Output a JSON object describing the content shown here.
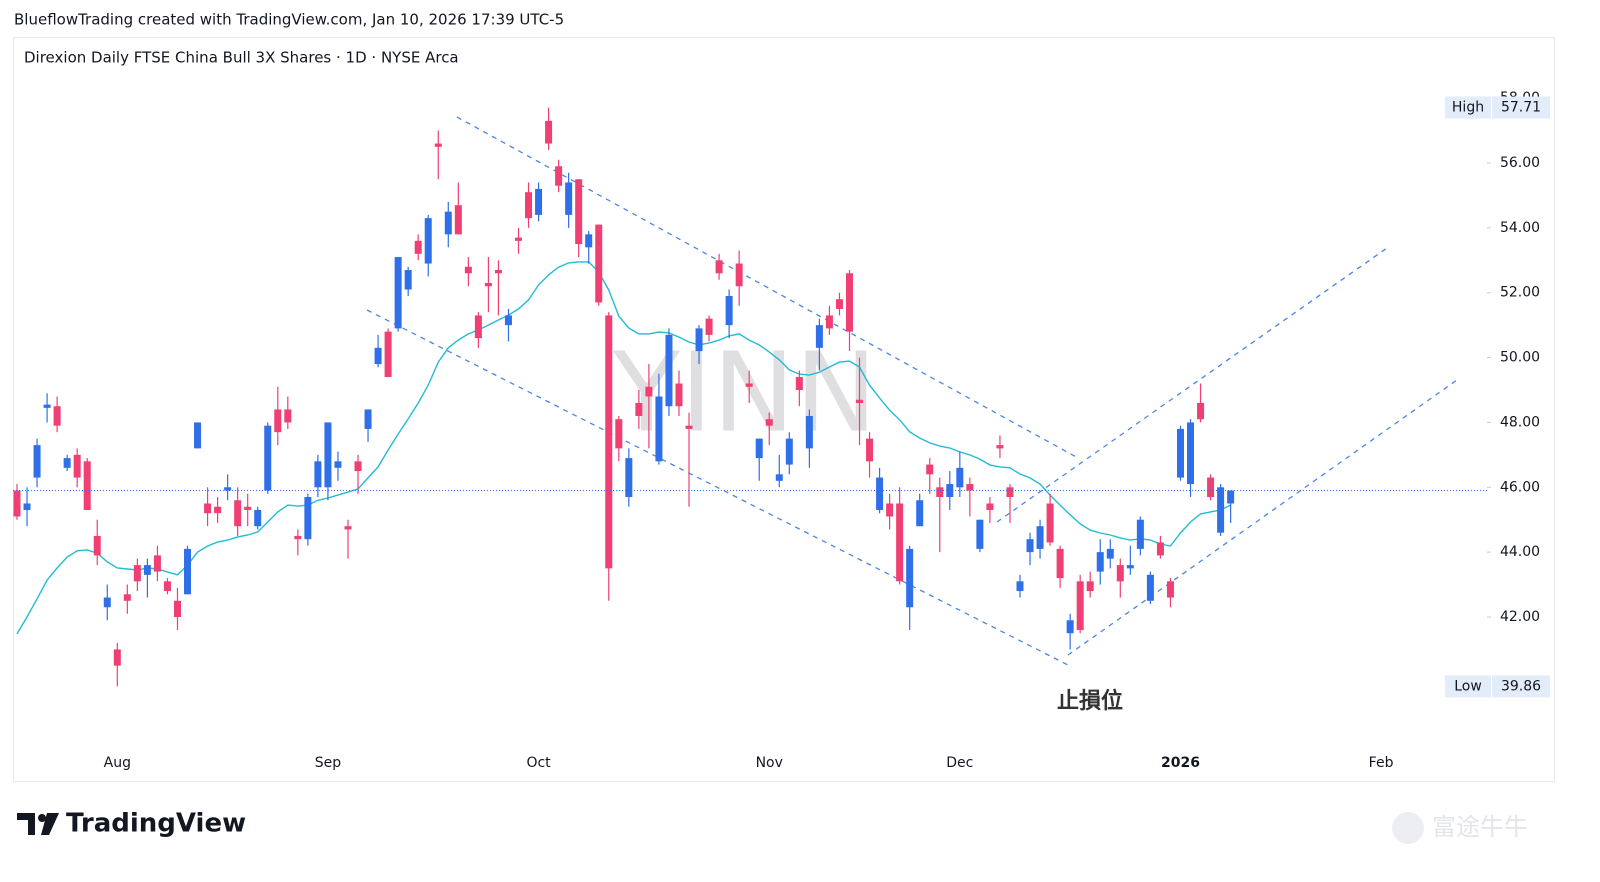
{
  "header": "BlueflowTrading created with TradingView.com, Jan 10, 2026 17:39 UTC-5",
  "footer": {
    "brand": "TradingView",
    "watermark": "富途牛牛"
  },
  "chart_data": {
    "type": "candlestick",
    "title": "Direxion Daily FTSE China Bull 3X Shares · 1D · NYSE Arca",
    "symbol_watermark": "YINN",
    "annotation": "止損位",
    "up_color": "#2f6fe8",
    "down_color": "#ef3f73",
    "categories": [
      null,
      null,
      null,
      null,
      null,
      null,
      null,
      null,
      null,
      null,
      "Aug",
      null,
      null,
      null,
      null,
      null,
      null,
      null,
      null,
      null,
      null,
      null,
      null,
      null,
      null,
      null,
      null,
      null,
      null,
      null,
      null,
      "Sep",
      null,
      null,
      null,
      null,
      null,
      null,
      null,
      null,
      null,
      null,
      null,
      null,
      null,
      null,
      null,
      null,
      null,
      null,
      null,
      null,
      "Oct",
      null,
      null,
      null,
      null,
      null,
      null,
      null,
      null,
      null,
      null,
      null,
      null,
      null,
      null,
      null,
      null,
      null,
      null,
      null,
      null,
      null,
      null,
      "Nov",
      null,
      null,
      null,
      null,
      null,
      null,
      null,
      null,
      null,
      null,
      null,
      null,
      null,
      null,
      null,
      null,
      null,
      null,
      "Dec",
      null,
      null,
      null,
      null,
      null,
      null,
      null,
      null,
      null,
      null,
      null,
      null,
      null,
      null,
      null,
      null,
      null,
      null,
      null,
      null,
      null,
      "2026",
      null,
      null,
      null,
      null,
      null,
      null,
      null,
      null,
      null,
      null,
      null,
      null,
      null,
      null,
      null,
      null,
      null,
      null,
      null,
      "Feb",
      null,
      null,
      null,
      null,
      null,
      null,
      null,
      null,
      null,
      null
    ],
    "open": [
      45.9,
      45.3,
      46.3,
      48.45,
      48.5,
      46.6,
      47.0,
      46.8,
      44.5,
      42.3,
      41.0,
      42.7,
      43.6,
      43.3,
      43.9,
      43.1,
      42.5,
      42.7,
      47.2,
      45.5,
      45.4,
      45.9,
      45.6,
      45.4,
      44.8,
      45.9,
      48.4,
      48.4,
      44.5,
      44.4,
      46.0,
      46.0,
      46.6,
      44.8,
      46.8,
      47.8,
      49.8,
      50.8,
      50.9,
      52.1,
      53.6,
      52.9,
      56.6,
      53.8,
      54.7,
      52.8,
      51.3,
      52.3,
      52.7,
      51.0,
      53.7,
      55.1,
      54.4,
      57.3,
      55.9,
      54.4,
      55.5,
      53.4,
      54.1,
      51.3,
      48.1,
      45.7,
      48.6,
      49.1,
      46.8,
      48.5,
      49.2,
      47.9,
      50.2,
      51.2,
      53.0,
      51.0,
      52.9,
      49.2,
      46.9,
      48.1,
      46.2,
      46.7,
      49.4,
      47.2,
      50.3,
      51.3,
      51.8,
      52.6,
      48.7,
      47.5,
      45.3,
      45.5,
      45.5,
      42.3,
      44.8,
      46.7,
      46.0,
      45.7,
      46.0,
      46.1,
      44.1,
      45.5,
      47.3,
      46.0,
      42.8,
      44.0,
      44.1,
      45.5,
      44.1,
      41.5,
      43.1,
      43.1,
      43.4,
      43.8,
      43.6,
      43.5,
      44.1,
      42.5,
      44.3,
      43.1,
      46.3,
      46.1,
      48.6,
      46.3,
      44.6,
      45.5,
      null,
      null,
      null,
      null,
      null,
      null,
      null,
      null,
      null,
      null,
      null,
      null,
      null,
      null,
      null,
      null,
      null,
      null,
      null,
      null,
      null,
      null,
      null,
      null,
      null
    ],
    "high": [
      46.1,
      46.0,
      47.5,
      48.9,
      48.8,
      47.0,
      47.2,
      46.9,
      45.0,
      43.0,
      41.2,
      43.0,
      43.8,
      43.8,
      44.2,
      43.2,
      42.9,
      44.2,
      48.0,
      46.0,
      45.7,
      46.4,
      46.0,
      45.8,
      45.4,
      48.0,
      49.1,
      48.8,
      44.7,
      45.8,
      47.0,
      48.0,
      47.1,
      45.0,
      47.0,
      48.4,
      50.7,
      50.9,
      53.1,
      52.8,
      53.8,
      54.4,
      57.0,
      54.8,
      55.4,
      53.1,
      51.4,
      53.1,
      53.0,
      51.5,
      54.0,
      55.4,
      55.4,
      57.71,
      56.1,
      55.7,
      55.5,
      53.9,
      54.1,
      51.4,
      48.2,
      47.2,
      49.0,
      49.8,
      49.5,
      50.9,
      49.6,
      48.3,
      51.0,
      51.3,
      53.2,
      52.1,
      53.3,
      49.6,
      47.5,
      48.3,
      47.0,
      47.7,
      49.6,
      48.4,
      51.2,
      51.6,
      52.0,
      52.7,
      50.0,
      47.7,
      46.6,
      45.8,
      46.0,
      44.2,
      45.8,
      46.9,
      46.3,
      46.5,
      47.1,
      46.3,
      45.0,
      45.7,
      47.6,
      46.1,
      43.3,
      44.6,
      45.0,
      45.8,
      44.2,
      42.1,
      43.3,
      43.4,
      44.4,
      44.4,
      43.8,
      44.2,
      45.1,
      43.4,
      44.5,
      43.2,
      47.9,
      48.1,
      49.2,
      46.4,
      46.1,
      45.9,
      null,
      null,
      null,
      null,
      null,
      null,
      null,
      null,
      null,
      null,
      null,
      null,
      null,
      null,
      null,
      null,
      null,
      null,
      null,
      null,
      null,
      null,
      null,
      null,
      null
    ],
    "low": [
      45.0,
      44.8,
      46.0,
      48.0,
      47.7,
      46.5,
      46.0,
      45.3,
      43.6,
      41.9,
      39.86,
      42.1,
      42.8,
      42.6,
      43.1,
      42.7,
      41.6,
      42.7,
      47.2,
      44.8,
      44.9,
      45.6,
      44.5,
      44.8,
      44.7,
      45.8,
      47.3,
      47.8,
      43.9,
      44.2,
      45.7,
      45.6,
      46.2,
      43.8,
      45.8,
      47.4,
      49.7,
      49.4,
      50.8,
      51.9,
      53.0,
      52.5,
      55.5,
      53.4,
      53.8,
      52.2,
      50.3,
      51.4,
      51.3,
      50.5,
      53.2,
      54.0,
      54.2,
      56.4,
      55.1,
      54.0,
      53.1,
      52.9,
      51.6,
      42.5,
      46.8,
      45.4,
      47.8,
      47.2,
      46.7,
      48.2,
      48.2,
      45.4,
      49.8,
      50.5,
      52.4,
      50.6,
      51.6,
      48.6,
      46.2,
      47.3,
      46.0,
      46.4,
      48.5,
      46.6,
      49.6,
      50.7,
      51.3,
      50.2,
      47.3,
      46.3,
      45.2,
      44.7,
      43.0,
      41.6,
      44.8,
      45.8,
      44.0,
      45.3,
      45.7,
      45.1,
      44.0,
      44.9,
      46.9,
      44.9,
      42.6,
      43.6,
      43.8,
      44.2,
      42.9,
      41.0,
      41.5,
      42.6,
      43.0,
      43.5,
      42.6,
      43.3,
      43.9,
      42.4,
      43.8,
      42.3,
      46.2,
      45.7,
      48.0,
      45.6,
      44.5,
      44.9,
      null,
      null,
      null,
      null,
      null,
      null,
      null,
      null,
      null,
      null,
      null,
      null,
      null,
      null,
      null,
      null,
      null,
      null,
      null,
      null,
      null,
      null,
      null,
      null,
      null
    ],
    "close": [
      45.1,
      45.5,
      47.3,
      48.55,
      47.9,
      46.9,
      46.3,
      45.3,
      43.9,
      42.6,
      40.5,
      42.5,
      43.1,
      43.6,
      43.4,
      42.8,
      42.0,
      44.1,
      48.0,
      45.2,
      45.2,
      46.0,
      44.8,
      45.3,
      45.3,
      47.9,
      47.7,
      48.0,
      44.4,
      45.7,
      46.8,
      48.0,
      46.8,
      44.7,
      46.5,
      48.4,
      50.3,
      49.4,
      53.1,
      52.7,
      53.2,
      54.3,
      56.5,
      54.5,
      53.8,
      52.6,
      50.6,
      52.2,
      52.6,
      51.3,
      53.6,
      54.3,
      55.2,
      56.6,
      55.3,
      55.4,
      53.5,
      53.8,
      51.7,
      43.5,
      47.2,
      46.9,
      48.2,
      48.8,
      48.8,
      50.7,
      48.5,
      47.8,
      50.9,
      50.7,
      52.6,
      51.9,
      52.2,
      49.1,
      47.5,
      47.9,
      46.4,
      47.5,
      49.0,
      48.2,
      51.0,
      50.9,
      51.5,
      50.8,
      48.6,
      46.8,
      46.3,
      45.1,
      43.1,
      44.1,
      45.6,
      46.4,
      45.7,
      46.1,
      46.6,
      45.9,
      45.0,
      45.3,
      47.2,
      45.7,
      43.1,
      44.4,
      44.8,
      44.3,
      43.2,
      41.9,
      41.6,
      42.8,
      44.0,
      44.1,
      43.1,
      43.6,
      45.0,
      43.3,
      43.9,
      42.6,
      47.8,
      48.0,
      48.1,
      45.7,
      46.0,
      45.9,
      null,
      null,
      null,
      null,
      null,
      null,
      null,
      null,
      null,
      null,
      null,
      null,
      null,
      null,
      null,
      null,
      null,
      null,
      null,
      null,
      null,
      null,
      null,
      null,
      null
    ],
    "moving_average": {
      "color": "#22bcd4",
      "values": [
        41.48,
        42.0,
        42.56,
        43.14,
        43.51,
        43.85,
        44.04,
        44.07,
        43.97,
        43.7,
        43.51,
        43.48,
        43.45,
        43.51,
        43.48,
        43.39,
        43.3,
        43.6,
        44.0,
        44.19,
        44.31,
        44.37,
        44.47,
        44.53,
        44.62,
        44.93,
        45.24,
        45.45,
        45.42,
        45.45,
        45.6,
        45.67,
        45.76,
        45.85,
        45.95,
        46.29,
        46.63,
        47.15,
        47.64,
        48.11,
        48.6,
        49.15,
        49.86,
        50.3,
        50.54,
        50.73,
        50.85,
        51.0,
        51.16,
        51.31,
        51.5,
        51.78,
        52.24,
        52.55,
        52.79,
        52.92,
        52.95,
        52.95,
        52.64,
        52.08,
        51.28,
        50.91,
        50.73,
        50.73,
        50.79,
        50.76,
        50.63,
        50.48,
        50.39,
        50.45,
        50.54,
        50.67,
        50.73,
        50.54,
        50.39,
        50.17,
        49.93,
        49.62,
        49.49,
        49.46,
        49.55,
        49.71,
        49.86,
        49.89,
        49.71,
        49.15,
        48.75,
        48.38,
        48.08,
        47.71,
        47.52,
        47.37,
        47.27,
        47.21,
        47.09,
        47.0,
        46.87,
        46.69,
        46.63,
        46.6,
        46.41,
        46.29,
        46.1,
        45.76,
        45.45,
        45.15,
        44.87,
        44.68,
        44.59,
        44.53,
        44.44,
        44.37,
        44.41,
        44.37,
        44.25,
        44.19,
        44.59,
        44.93,
        45.18,
        45.24,
        45.3,
        45.45,
        null,
        null,
        null,
        null,
        null,
        null,
        null,
        null,
        null,
        null,
        null,
        null,
        null,
        null,
        null,
        null,
        null,
        null,
        null,
        null,
        null,
        null,
        null,
        null,
        null
      ]
    },
    "ylim": [
      37.96,
      58.56
    ],
    "yticks": [
      {
        "value": 42,
        "label": "42.00"
      },
      {
        "value": 44,
        "label": "44.00"
      },
      {
        "value": 46,
        "label": "46.00"
      },
      {
        "value": 48,
        "label": "48.00"
      },
      {
        "value": 50,
        "label": "50.00"
      },
      {
        "value": 52,
        "label": "52.00"
      },
      {
        "value": 54,
        "label": "54.00"
      },
      {
        "value": 56,
        "label": "56.00"
      },
      {
        "value": 58,
        "label": "58.00"
      }
    ],
    "high_marker": {
      "label": "High",
      "value": 57.71
    },
    "low_marker": {
      "label": "Low",
      "value": 39.86
    }
  }
}
